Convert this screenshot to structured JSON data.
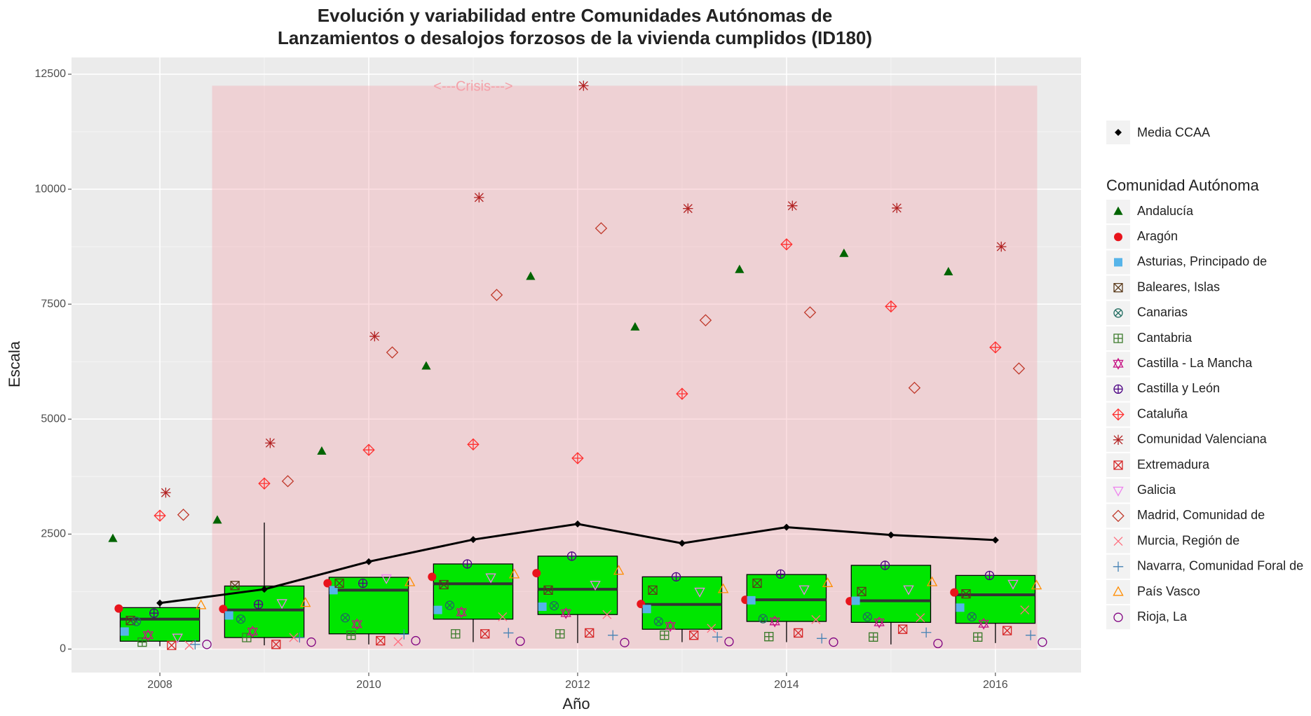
{
  "chart_data": {
    "type": "box-scatter",
    "title": [
      "Evolución y variabilidad entre Comunidades Autónomas de",
      "Lanzamientos o desalojos forzosos de la vivienda cumplidos (ID180)"
    ],
    "x_label": "Año",
    "y_label": "Escala",
    "x": [
      2008,
      2009,
      2010,
      2011,
      2012,
      2013,
      2014,
      2015,
      2016
    ],
    "xlim": [
      2007.154,
      2016.82
    ],
    "xticks": [
      2008,
      2010,
      2012,
      2014,
      2016
    ],
    "ylim": [
      -512,
      12865
    ],
    "yticks": [
      0,
      2500,
      5000,
      7500,
      10000,
      12500
    ],
    "grid": true,
    "crisis": {
      "label": "<---Crisis--->",
      "x": [
        2008.5,
        2016.4
      ],
      "y": [
        0,
        12250
      ],
      "color": "#f4a0a8"
    },
    "boxes": {
      "color": "#00e600",
      "lower": [
        60,
        80,
        100,
        150,
        130,
        150,
        150,
        100,
        130
      ],
      "q1": [
        170,
        250,
        330,
        650,
        750,
        430,
        600,
        580,
        560
      ],
      "median": [
        650,
        850,
        1280,
        1420,
        1300,
        970,
        1070,
        1050,
        1180
      ],
      "q3": [
        900,
        1370,
        1560,
        1850,
        2020,
        1570,
        1620,
        1820,
        1600
      ],
      "upper": [
        1000,
        2750,
        1560,
        1850,
        2020,
        1570,
        1620,
        1820,
        1600
      ]
    },
    "mean": {
      "name": "Media CCAA",
      "color": "#000000",
      "values": [
        1000,
        1300,
        1900,
        2380,
        2720,
        2300,
        2650,
        2480,
        2370
      ]
    },
    "legend_title": "Comunidad Autónoma",
    "series": [
      {
        "name": "Andalucía",
        "color": "#006400",
        "shape": "triangle",
        "values": [
          2400,
          2800,
          4300,
          6150,
          8100,
          7000,
          8250,
          8600,
          8200
        ]
      },
      {
        "name": "Aragón",
        "color": "#e8141c",
        "shape": "circle",
        "values": [
          880,
          870,
          1430,
          1570,
          1650,
          980,
          1070,
          1040,
          1230
        ]
      },
      {
        "name": "Asturias, Principado de",
        "color": "#56b4e9",
        "shape": "square",
        "values": [
          380,
          730,
          1280,
          850,
          920,
          870,
          1060,
          1050,
          900
        ]
      },
      {
        "name": "Baleares, Islas",
        "color": "#5a3a1a",
        "shape": "square-x",
        "values": [
          620,
          1380,
          1430,
          1400,
          1280,
          1280,
          1430,
          1250,
          1200
        ]
      },
      {
        "name": "Canarias",
        "color": "#1f6b5f",
        "shape": "circle-x",
        "values": [
          600,
          650,
          680,
          950,
          940,
          600,
          660,
          700,
          700
        ]
      },
      {
        "name": "Cantabria",
        "color": "#3a7a2a",
        "shape": "square-plus",
        "values": [
          150,
          250,
          300,
          330,
          330,
          300,
          270,
          260,
          260
        ]
      },
      {
        "name": "Castilla - La Mancha",
        "color": "#c71585",
        "shape": "star-triangle",
        "values": [
          300,
          380,
          540,
          800,
          780,
          500,
          600,
          580,
          550
        ]
      },
      {
        "name": "Castilla y León",
        "color": "#4b0082",
        "shape": "circle-plus",
        "values": [
          780,
          970,
          1430,
          1850,
          2020,
          1570,
          1630,
          1820,
          1600
        ]
      },
      {
        "name": "Cataluña",
        "color": "#ff3030",
        "shape": "diamond-plus",
        "values": [
          2900,
          3600,
          4330,
          4450,
          4150,
          5550,
          8800,
          7450,
          6560
        ]
      },
      {
        "name": "Comunidad Valenciana",
        "color": "#b22222",
        "shape": "asterisk",
        "values": [
          3400,
          4480,
          6800,
          9820,
          12250,
          9580,
          9640,
          9590,
          8750
        ]
      },
      {
        "name": "Extremadura",
        "color": "#d62728",
        "shape": "square-x",
        "values": [
          80,
          100,
          180,
          330,
          350,
          300,
          350,
          430,
          400
        ]
      },
      {
        "name": "Galicia",
        "color": "#ee82ee",
        "shape": "triangle-down",
        "values": [
          250,
          1000,
          1540,
          1560,
          1400,
          1250,
          1300,
          1300,
          1420
        ]
      },
      {
        "name": "Madrid, Comunidad de",
        "color": "#c0392b",
        "shape": "diamond",
        "values": [
          2920,
          3650,
          6450,
          7700,
          9150,
          7150,
          7320,
          5680,
          6100
        ]
      },
      {
        "name": "Murcia, Región de",
        "color": "#ff6f7f",
        "shape": "x",
        "values": [
          80,
          250,
          160,
          700,
          750,
          450,
          640,
          680,
          850
        ]
      },
      {
        "name": "Navarra, Comunidad Foral de",
        "color": "#4682b4",
        "shape": "plus",
        "values": [
          100,
          250,
          320,
          350,
          300,
          260,
          230,
          360,
          300
        ]
      },
      {
        "name": "País Vasco",
        "color": "#ff8c00",
        "shape": "triangle-open",
        "values": [
          950,
          1000,
          1450,
          1620,
          1700,
          1300,
          1430,
          1450,
          1380
        ]
      },
      {
        "name": "Rioja, La",
        "color": "#800080",
        "shape": "circle-open",
        "values": [
          100,
          150,
          180,
          170,
          140,
          160,
          150,
          120,
          150
        ]
      }
    ]
  }
}
